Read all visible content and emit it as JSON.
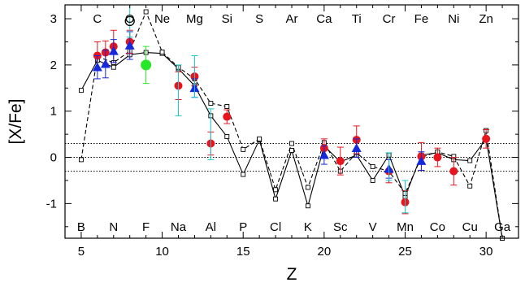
{
  "chart_data": {
    "type": "scatter",
    "xlabel": "Z",
    "ylabel": "[X/Fe]",
    "xlim": [
      4,
      32
    ],
    "ylim": [
      -1.75,
      3.3
    ],
    "xticks": [
      5,
      10,
      15,
      20,
      25,
      30
    ],
    "yticks": [
      -1,
      0,
      1,
      2,
      3
    ],
    "reference_lines": [
      0,
      0.3,
      -0.3
    ],
    "element_labels_top": [
      {
        "z": 6,
        "symbol": "C"
      },
      {
        "z": 8,
        "symbol": "O"
      },
      {
        "z": 10,
        "symbol": "Ne"
      },
      {
        "z": 12,
        "symbol": "Mg"
      },
      {
        "z": 14,
        "symbol": "Si"
      },
      {
        "z": 16,
        "symbol": "S"
      },
      {
        "z": 18,
        "symbol": "Ar"
      },
      {
        "z": 20,
        "symbol": "Ca"
      },
      {
        "z": 22,
        "symbol": "Ti"
      },
      {
        "z": 24,
        "symbol": "Cr"
      },
      {
        "z": 26,
        "symbol": "Fe"
      },
      {
        "z": 28,
        "symbol": "Ni"
      },
      {
        "z": 30,
        "symbol": "Zn"
      }
    ],
    "element_labels_bottom": [
      {
        "z": 5,
        "symbol": "B"
      },
      {
        "z": 7,
        "symbol": "N"
      },
      {
        "z": 9,
        "symbol": "F"
      },
      {
        "z": 11,
        "symbol": "Na"
      },
      {
        "z": 13,
        "symbol": "Al"
      },
      {
        "z": 15,
        "symbol": "P"
      },
      {
        "z": 17,
        "symbol": "Cl"
      },
      {
        "z": 19,
        "symbol": "K"
      },
      {
        "z": 21,
        "symbol": "Sc"
      },
      {
        "z": 23,
        "symbol": "V"
      },
      {
        "z": 25,
        "symbol": "Mn"
      },
      {
        "z": 27,
        "symbol": "Co"
      },
      {
        "z": 29,
        "symbol": "Cu"
      },
      {
        "z": 31,
        "symbol": "Ga"
      }
    ],
    "series": [
      {
        "style": "model-solid",
        "color": "#000000",
        "x": [
          5,
          6,
          7,
          8,
          9,
          10,
          11,
          12,
          13,
          14,
          15,
          16,
          17,
          18,
          19,
          20,
          21,
          22,
          23,
          24,
          25,
          26,
          27,
          28,
          29,
          30,
          31
        ],
        "y": [
          1.45,
          2.1,
          1.95,
          2.22,
          2.27,
          2.25,
          1.92,
          1.55,
          0.9,
          0.45,
          -0.37,
          0.38,
          -0.9,
          0.15,
          -1.05,
          0.25,
          -0.1,
          0.05,
          -0.5,
          0.05,
          -0.85,
          0.05,
          0.1,
          -0.05,
          -0.07,
          0.4,
          -1.75
        ]
      },
      {
        "style": "model-dashed",
        "color": "#000000",
        "x": [
          5,
          6,
          7,
          8,
          9,
          10,
          11,
          12,
          13,
          14,
          15,
          16,
          17,
          18,
          19,
          20,
          21,
          22,
          23,
          24,
          25,
          26,
          27,
          28,
          29,
          30,
          31
        ],
        "y": [
          -0.05,
          2.18,
          2.05,
          2.3,
          3.15,
          2.28,
          1.95,
          1.7,
          1.17,
          1.1,
          0.17,
          0.4,
          -0.7,
          0.3,
          -0.65,
          0.32,
          -0.3,
          0.1,
          -0.2,
          -0.3,
          -0.78,
          0.0,
          0.12,
          0.02,
          -0.62,
          0.58,
          -1.75
        ]
      },
      {
        "style": "obs-circle",
        "color": "#e8141e",
        "points": [
          {
            "x": 6,
            "y": 2.2,
            "err": 0.3
          },
          {
            "x": 6.5,
            "y": 2.27,
            "err": 0.25
          },
          {
            "x": 7,
            "y": 2.4,
            "err": 0.35
          },
          {
            "x": 8,
            "y": 2.5,
            "err": 0.25
          },
          {
            "x": 11,
            "y": 1.55,
            "err": 0.3
          },
          {
            "x": 12,
            "y": 1.75,
            "err": 0.2
          },
          {
            "x": 13,
            "y": 0.3,
            "err": 0.25
          },
          {
            "x": 14,
            "y": 0.88,
            "err": 0.15
          },
          {
            "x": 20,
            "y": 0.2,
            "err": 0.2
          },
          {
            "x": 21,
            "y": -0.08,
            "err": 0.3
          },
          {
            "x": 22,
            "y": 0.38,
            "err": 0.3
          },
          {
            "x": 24,
            "y": -0.3,
            "err": 0.25
          },
          {
            "x": 25,
            "y": -0.97,
            "err": 0.25
          },
          {
            "x": 26,
            "y": 0.02,
            "err": 0.3
          },
          {
            "x": 27,
            "y": 0.0,
            "err": 0.2
          },
          {
            "x": 28,
            "y": -0.3,
            "err": 0.3
          },
          {
            "x": 30,
            "y": 0.4,
            "err": 0.2
          }
        ]
      },
      {
        "style": "obs-triangle",
        "color": "#1428dc",
        "points": [
          {
            "x": 6,
            "y": 1.95,
            "err": 0.25
          },
          {
            "x": 6.5,
            "y": 2.02,
            "err": 0.3
          },
          {
            "x": 7,
            "y": 2.3,
            "err": 0.25
          },
          {
            "x": 8,
            "y": 2.42,
            "err": 0.3
          },
          {
            "x": 12,
            "y": 1.5,
            "err": 0.2
          },
          {
            "x": 20,
            "y": 0.05,
            "err": 0.2
          },
          {
            "x": 22,
            "y": 0.2,
            "err": 0.2
          },
          {
            "x": 24,
            "y": -0.25,
            "err": 0.2
          },
          {
            "x": 26,
            "y": -0.08,
            "err": 0.2
          }
        ]
      },
      {
        "style": "obs-circle",
        "color": "#28e628",
        "points": [
          {
            "x": 9,
            "y": 2.0,
            "err": 0.4
          }
        ]
      },
      {
        "style": "obs-errorbar",
        "color": "#19c8c8",
        "points": [
          {
            "x": 8,
            "y": 2.95,
            "err": 0.35
          },
          {
            "x": 11,
            "y": 1.45,
            "err": 0.55
          },
          {
            "x": 12,
            "y": 1.75,
            "err": 0.45
          },
          {
            "x": 13,
            "y": 0.5,
            "err": 0.55
          },
          {
            "x": 24,
            "y": -0.2,
            "err": 0.3
          },
          {
            "x": 25,
            "y": -0.85,
            "err": 0.35
          }
        ]
      },
      {
        "style": "obs-open-circle",
        "color": "#000000",
        "points": [
          {
            "x": 8,
            "y": 2.95
          }
        ]
      }
    ]
  }
}
